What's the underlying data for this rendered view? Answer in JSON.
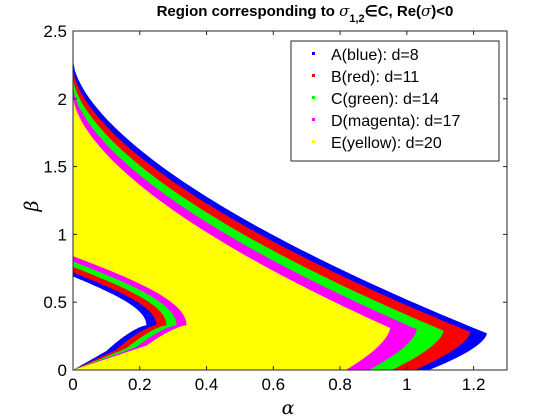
{
  "chart_data": {
    "type": "area",
    "title": "Region corresponding to σ₁,₂∈C, Re(σ)<0",
    "title_parts": {
      "prefix": "Region corresponding to ",
      "symbol": "σ",
      "subscript": "1,2",
      "middle": "∈C, Re(",
      "symbol2": "σ",
      "suffix": ")<0"
    },
    "xlabel": "α",
    "ylabel": "β",
    "xlim": [
      0,
      1.3
    ],
    "ylim": [
      0,
      2.5
    ],
    "xticks": [
      0,
      0.2,
      0.4,
      0.6,
      0.8,
      1,
      1.2
    ],
    "xtick_labels": [
      "0",
      "0.2",
      "0.4",
      "0.6",
      "0.8",
      "1",
      "1.2"
    ],
    "yticks": [
      0,
      0.5,
      1,
      1.5,
      2,
      2.5
    ],
    "ytick_labels": [
      "0",
      "0.5",
      "1",
      "1.5",
      "2",
      "2.5"
    ],
    "grid": false,
    "legend_position": "top-right",
    "series": [
      {
        "name": "A(blue): d=8",
        "color": "#0000ff",
        "upper_intercept": 2.28,
        "nose": [
          1.24,
          0.27
        ],
        "lower_intercept": 0.69,
        "inner_tip": [
          0.1,
          0.14
        ]
      },
      {
        "name": "B(red): d=11",
        "color": "#ff0000",
        "upper_intercept": 2.22,
        "nose": [
          1.19,
          0.28
        ],
        "lower_intercept": 0.72,
        "inner_tip": [
          0.13,
          0.15
        ]
      },
      {
        "name": "C(green): d=14",
        "color": "#00ff00",
        "upper_intercept": 2.16,
        "nose": [
          1.11,
          0.29
        ],
        "lower_intercept": 0.76,
        "inner_tip": [
          0.16,
          0.16
        ]
      },
      {
        "name": "D(magenta): d=17",
        "color": "#ff00ff",
        "upper_intercept": 2.09,
        "nose": [
          1.03,
          0.3
        ],
        "lower_intercept": 0.8,
        "inner_tip": [
          0.19,
          0.17
        ]
      },
      {
        "name": "E(yellow): d=20",
        "color": "#ffff00",
        "upper_intercept": 2.02,
        "nose": [
          0.95,
          0.31
        ],
        "lower_intercept": 0.84,
        "inner_tip": [
          0.22,
          0.18
        ]
      }
    ]
  }
}
